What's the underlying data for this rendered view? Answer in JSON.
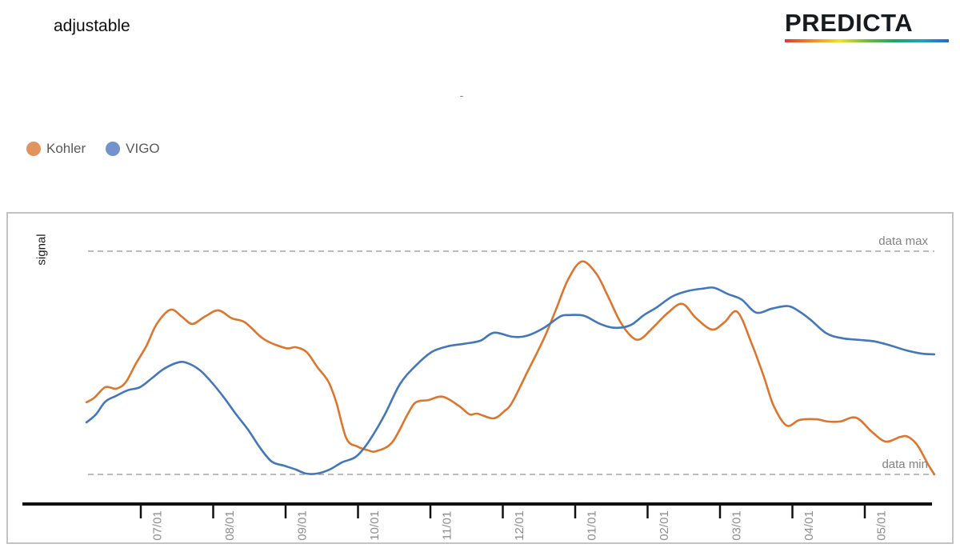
{
  "page": {
    "title": "adjustable",
    "subtitle_dash": "-",
    "brand": {
      "name": "PREDICTA",
      "underline_colors": [
        "#dd3b31",
        "#ef8b28",
        "#f6df25",
        "#6abf3f",
        "#1ba75f",
        "#18a4c0",
        "#2668d6"
      ]
    }
  },
  "legend": {
    "items": [
      {
        "label": "Kohler",
        "dot_color": "#E2945E"
      },
      {
        "label": "VIGO",
        "dot_color": "#7393CC"
      }
    ]
  },
  "chart_data": {
    "type": "line",
    "title": "adjustable",
    "xlabel": "",
    "ylabel": "signal",
    "x_unit": "months, 0 = 07/01 tick",
    "ylim": [
      0,
      100
    ],
    "grid": false,
    "legend_position": "top-left",
    "categories": [
      "07/01",
      "08/01",
      "09/01",
      "10/01",
      "11/01",
      "12/01",
      "01/01",
      "02/01",
      "03/01",
      "04/01",
      "05/01"
    ],
    "thresholds": {
      "max_label": "data max",
      "max_value": 100,
      "min_label": "data min",
      "min_value": 0
    },
    "axis_color": "#111111",
    "threshold_line_color": "#a6a6a6",
    "tick_label_color": "#8d8d8d",
    "series": [
      {
        "name": "Kohler",
        "color": "#DC762E",
        "points": [
          [
            -0.75,
            32.3
          ],
          [
            -0.64,
            34.4
          ],
          [
            -0.49,
            39.1
          ],
          [
            -0.34,
            38.4
          ],
          [
            -0.21,
            41.2
          ],
          [
            -0.07,
            49.5
          ],
          [
            0.08,
            57.7
          ],
          [
            0.22,
            67.4
          ],
          [
            0.41,
            73.8
          ],
          [
            0.57,
            70.6
          ],
          [
            0.71,
            67.4
          ],
          [
            0.88,
            70.6
          ],
          [
            1.07,
            73.5
          ],
          [
            1.26,
            69.9
          ],
          [
            1.44,
            68.1
          ],
          [
            1.7,
            60.6
          ],
          [
            2.0,
            56.6
          ],
          [
            2.14,
            57.0
          ],
          [
            2.29,
            54.8
          ],
          [
            2.44,
            48.0
          ],
          [
            2.59,
            41.6
          ],
          [
            2.7,
            32.3
          ],
          [
            2.84,
            16.1
          ],
          [
            2.99,
            12.5
          ],
          [
            3.14,
            10.8
          ],
          [
            3.25,
            10.4
          ],
          [
            3.47,
            14.3
          ],
          [
            3.69,
            27.2
          ],
          [
            3.8,
            32.3
          ],
          [
            3.97,
            33.3
          ],
          [
            4.17,
            34.8
          ],
          [
            4.39,
            30.8
          ],
          [
            4.54,
            26.9
          ],
          [
            4.65,
            27.2
          ],
          [
            4.87,
            25.1
          ],
          [
            5.02,
            28.3
          ],
          [
            5.13,
            32.3
          ],
          [
            5.35,
            46.6
          ],
          [
            5.57,
            61.0
          ],
          [
            5.73,
            73.5
          ],
          [
            5.9,
            87.2
          ],
          [
            6.09,
            95.4
          ],
          [
            6.29,
            90.0
          ],
          [
            6.45,
            80.0
          ],
          [
            6.62,
            68.5
          ],
          [
            6.78,
            61.7
          ],
          [
            6.9,
            60.6
          ],
          [
            7.06,
            65.3
          ],
          [
            7.28,
            72.4
          ],
          [
            7.48,
            76.4
          ],
          [
            7.67,
            70.0
          ],
          [
            7.89,
            64.9
          ],
          [
            8.06,
            68.1
          ],
          [
            8.24,
            72.8
          ],
          [
            8.44,
            58.4
          ],
          [
            8.61,
            43.4
          ],
          [
            8.74,
            30.8
          ],
          [
            8.92,
            21.9
          ],
          [
            9.1,
            24.4
          ],
          [
            9.33,
            24.7
          ],
          [
            9.49,
            23.7
          ],
          [
            9.66,
            23.7
          ],
          [
            9.88,
            25.4
          ],
          [
            10.1,
            19.0
          ],
          [
            10.29,
            14.7
          ],
          [
            10.49,
            16.8
          ],
          [
            10.6,
            16.8
          ],
          [
            10.73,
            12.9
          ],
          [
            10.87,
            4.7
          ],
          [
            10.96,
            0.0
          ]
        ]
      },
      {
        "name": "VIGO",
        "color": "#4377B9",
        "points": [
          [
            -0.75,
            23.3
          ],
          [
            -0.62,
            26.9
          ],
          [
            -0.49,
            32.6
          ],
          [
            -0.34,
            35.2
          ],
          [
            -0.18,
            37.7
          ],
          [
            -0.01,
            39.1
          ],
          [
            0.15,
            43.0
          ],
          [
            0.32,
            47.3
          ],
          [
            0.52,
            50.2
          ],
          [
            0.65,
            49.8
          ],
          [
            0.82,
            46.6
          ],
          [
            0.98,
            41.2
          ],
          [
            1.15,
            34.4
          ],
          [
            1.31,
            27.2
          ],
          [
            1.48,
            20.1
          ],
          [
            1.65,
            11.8
          ],
          [
            1.81,
            5.7
          ],
          [
            1.98,
            3.9
          ],
          [
            2.14,
            2.2
          ],
          [
            2.28,
            0.4
          ],
          [
            2.44,
            0.4
          ],
          [
            2.61,
            2.2
          ],
          [
            2.78,
            5.4
          ],
          [
            2.97,
            7.9
          ],
          [
            3.14,
            14.3
          ],
          [
            3.36,
            26.2
          ],
          [
            3.58,
            40.5
          ],
          [
            3.8,
            48.8
          ],
          [
            4.02,
            54.9
          ],
          [
            4.24,
            57.4
          ],
          [
            4.46,
            58.5
          ],
          [
            4.69,
            59.9
          ],
          [
            4.88,
            63.5
          ],
          [
            5.13,
            61.7
          ],
          [
            5.33,
            62.1
          ],
          [
            5.57,
            65.7
          ],
          [
            5.79,
            70.7
          ],
          [
            5.92,
            71.4
          ],
          [
            6.12,
            71.1
          ],
          [
            6.34,
            67.5
          ],
          [
            6.54,
            65.7
          ],
          [
            6.76,
            66.8
          ],
          [
            6.95,
            71.4
          ],
          [
            7.12,
            74.7
          ],
          [
            7.34,
            79.7
          ],
          [
            7.56,
            82.2
          ],
          [
            7.78,
            83.3
          ],
          [
            7.92,
            83.6
          ],
          [
            8.11,
            80.8
          ],
          [
            8.3,
            78.3
          ],
          [
            8.5,
            72.5
          ],
          [
            8.72,
            74.3
          ],
          [
            8.94,
            75.4
          ],
          [
            9.1,
            72.9
          ],
          [
            9.25,
            69.3
          ],
          [
            9.47,
            63.2
          ],
          [
            9.69,
            61.0
          ],
          [
            9.91,
            60.3
          ],
          [
            10.13,
            59.6
          ],
          [
            10.35,
            57.8
          ],
          [
            10.57,
            55.6
          ],
          [
            10.79,
            54.1
          ],
          [
            10.96,
            53.8
          ]
        ]
      }
    ]
  }
}
